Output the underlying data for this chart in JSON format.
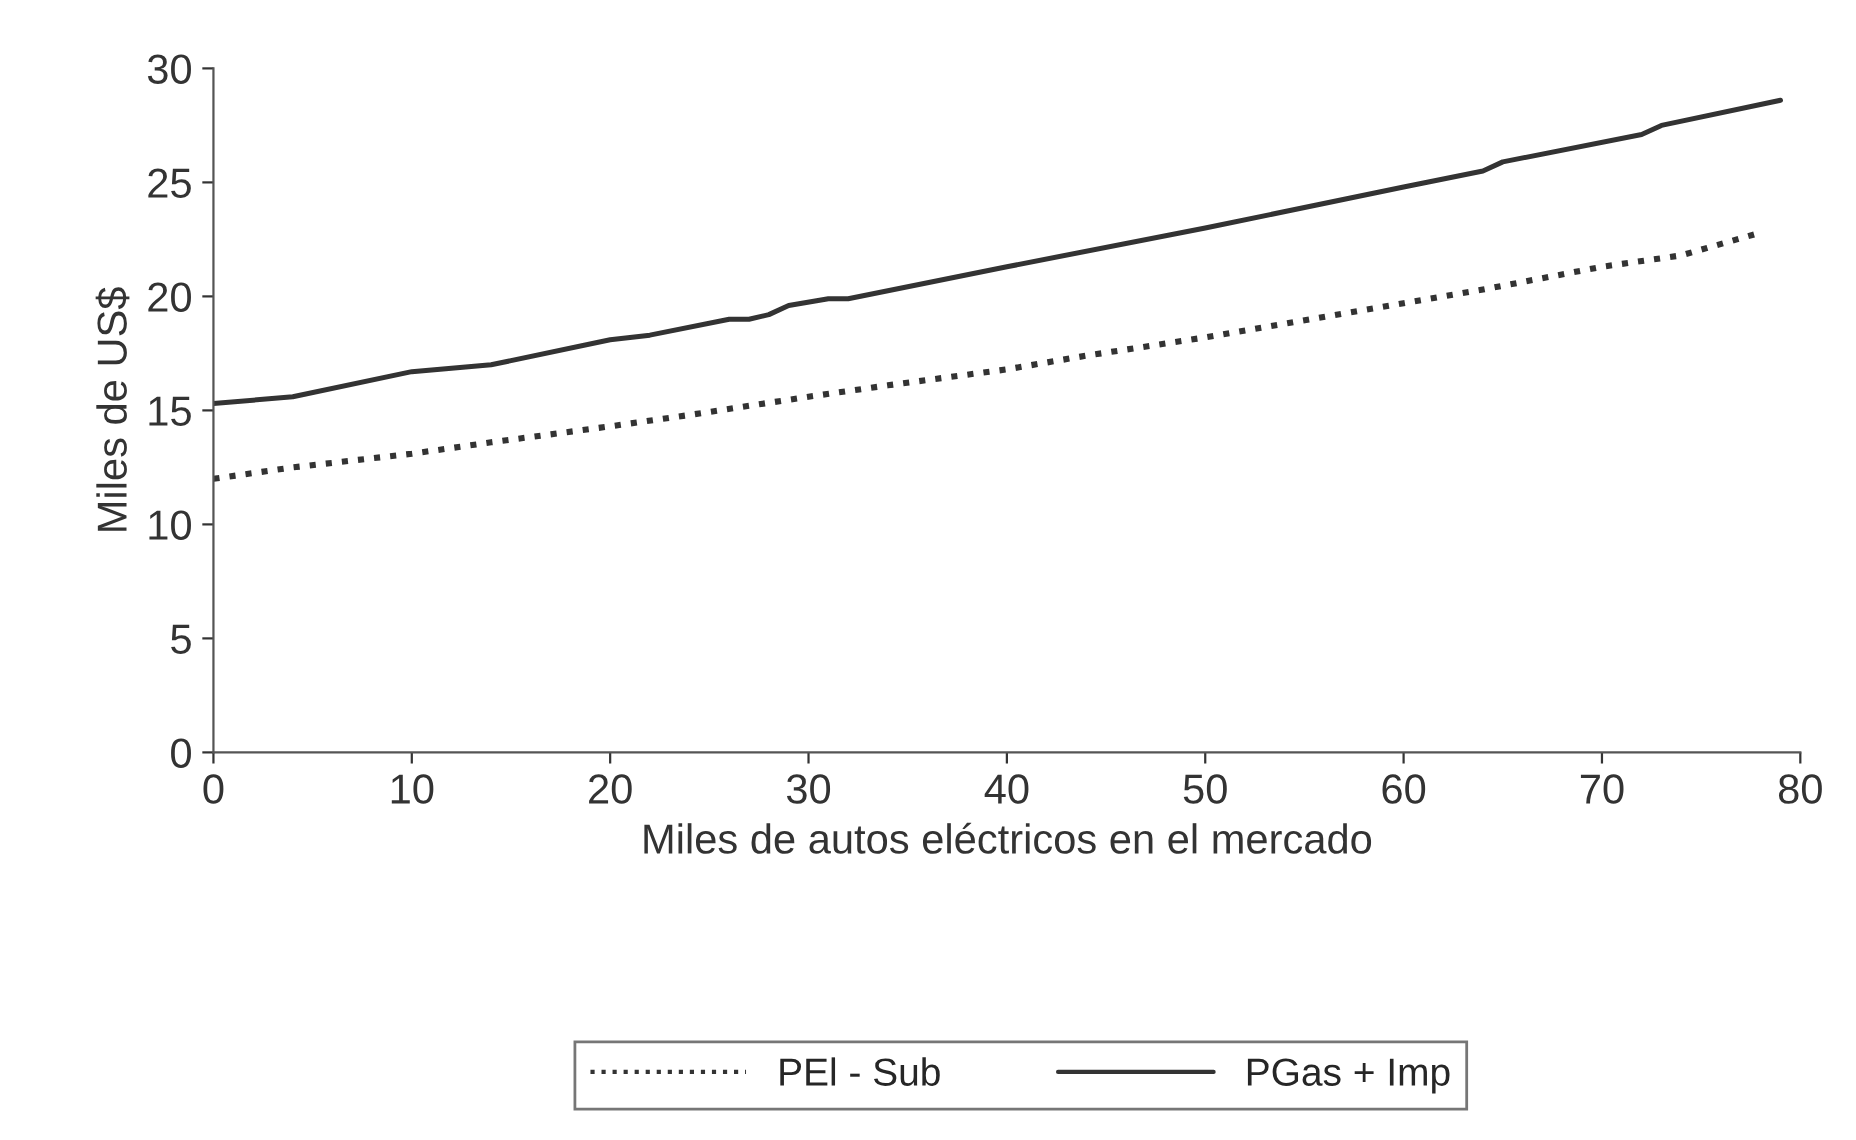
{
  "chart_data": {
    "type": "line",
    "xlabel": "Miles de autos eléctricos en el mercado",
    "ylabel": "Miles de US$",
    "xlim": [
      0,
      80
    ],
    "xticks": [
      0,
      10,
      20,
      30,
      40,
      50,
      60,
      70,
      80
    ],
    "ylim": [
      0,
      30
    ],
    "yticks": [
      0,
      5,
      10,
      15,
      20,
      25,
      30
    ],
    "grid": false,
    "legend": "bottom",
    "series": [
      {
        "name": "PEl - Sub",
        "color": "#333333",
        "line_style": "dotted",
        "x": [
          0,
          4,
          10,
          14,
          20,
          24,
          30,
          34,
          40,
          44,
          50,
          54,
          60,
          64,
          70,
          74,
          78
        ],
        "values": [
          12.0,
          12.5,
          13.1,
          13.6,
          14.3,
          14.8,
          15.6,
          16.1,
          16.8,
          17.4,
          18.2,
          18.8,
          19.7,
          20.3,
          21.3,
          21.8,
          22.8
        ]
      },
      {
        "name": "PGas + Imp",
        "color": "#333333",
        "line_style": "solid",
        "x": [
          0,
          4,
          10,
          14,
          20,
          22,
          26,
          27,
          28,
          29,
          31,
          32,
          40,
          50,
          60,
          64,
          65,
          72,
          73,
          79
        ],
        "values": [
          15.3,
          15.6,
          16.7,
          17.0,
          18.1,
          18.3,
          19.0,
          19.0,
          19.2,
          19.6,
          19.9,
          19.9,
          21.3,
          23.0,
          24.8,
          25.5,
          25.9,
          27.1,
          27.5,
          28.6
        ]
      }
    ]
  }
}
